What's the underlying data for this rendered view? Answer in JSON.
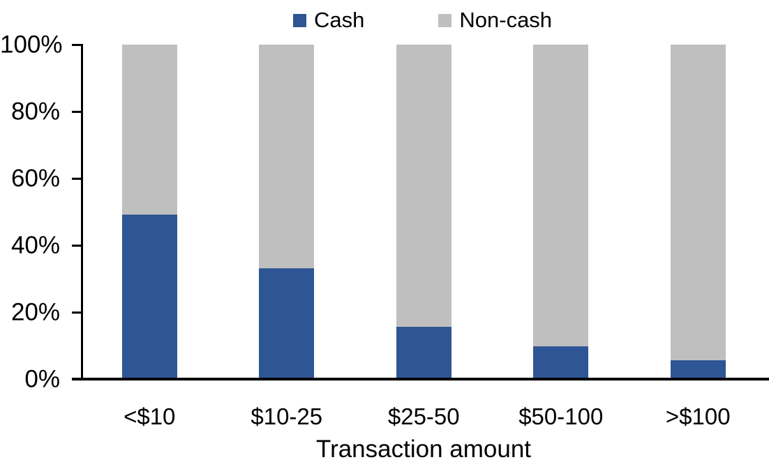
{
  "chart_data": {
    "type": "bar",
    "stacked": true,
    "title": "",
    "xlabel": "Transaction amount",
    "ylabel": "",
    "categories": [
      "<$10",
      "$10-25",
      "$25-50",
      "$50-100",
      ">$100"
    ],
    "series": [
      {
        "name": "Cash",
        "color": "#2E5594",
        "values": [
          49,
          33,
          15.5,
          9.5,
          5.5
        ]
      },
      {
        "name": "Non-cash",
        "color": "#BFBFBF",
        "values": [
          51,
          67,
          84.5,
          90.5,
          94.5
        ]
      }
    ],
    "y_axis": {
      "min": 0,
      "max": 100,
      "tick_step": 20,
      "tick_labels": [
        "0%",
        "20%",
        "40%",
        "60%",
        "80%",
        "100%"
      ]
    },
    "legend_position": "top",
    "grid": false,
    "axis_color": "#000000"
  }
}
